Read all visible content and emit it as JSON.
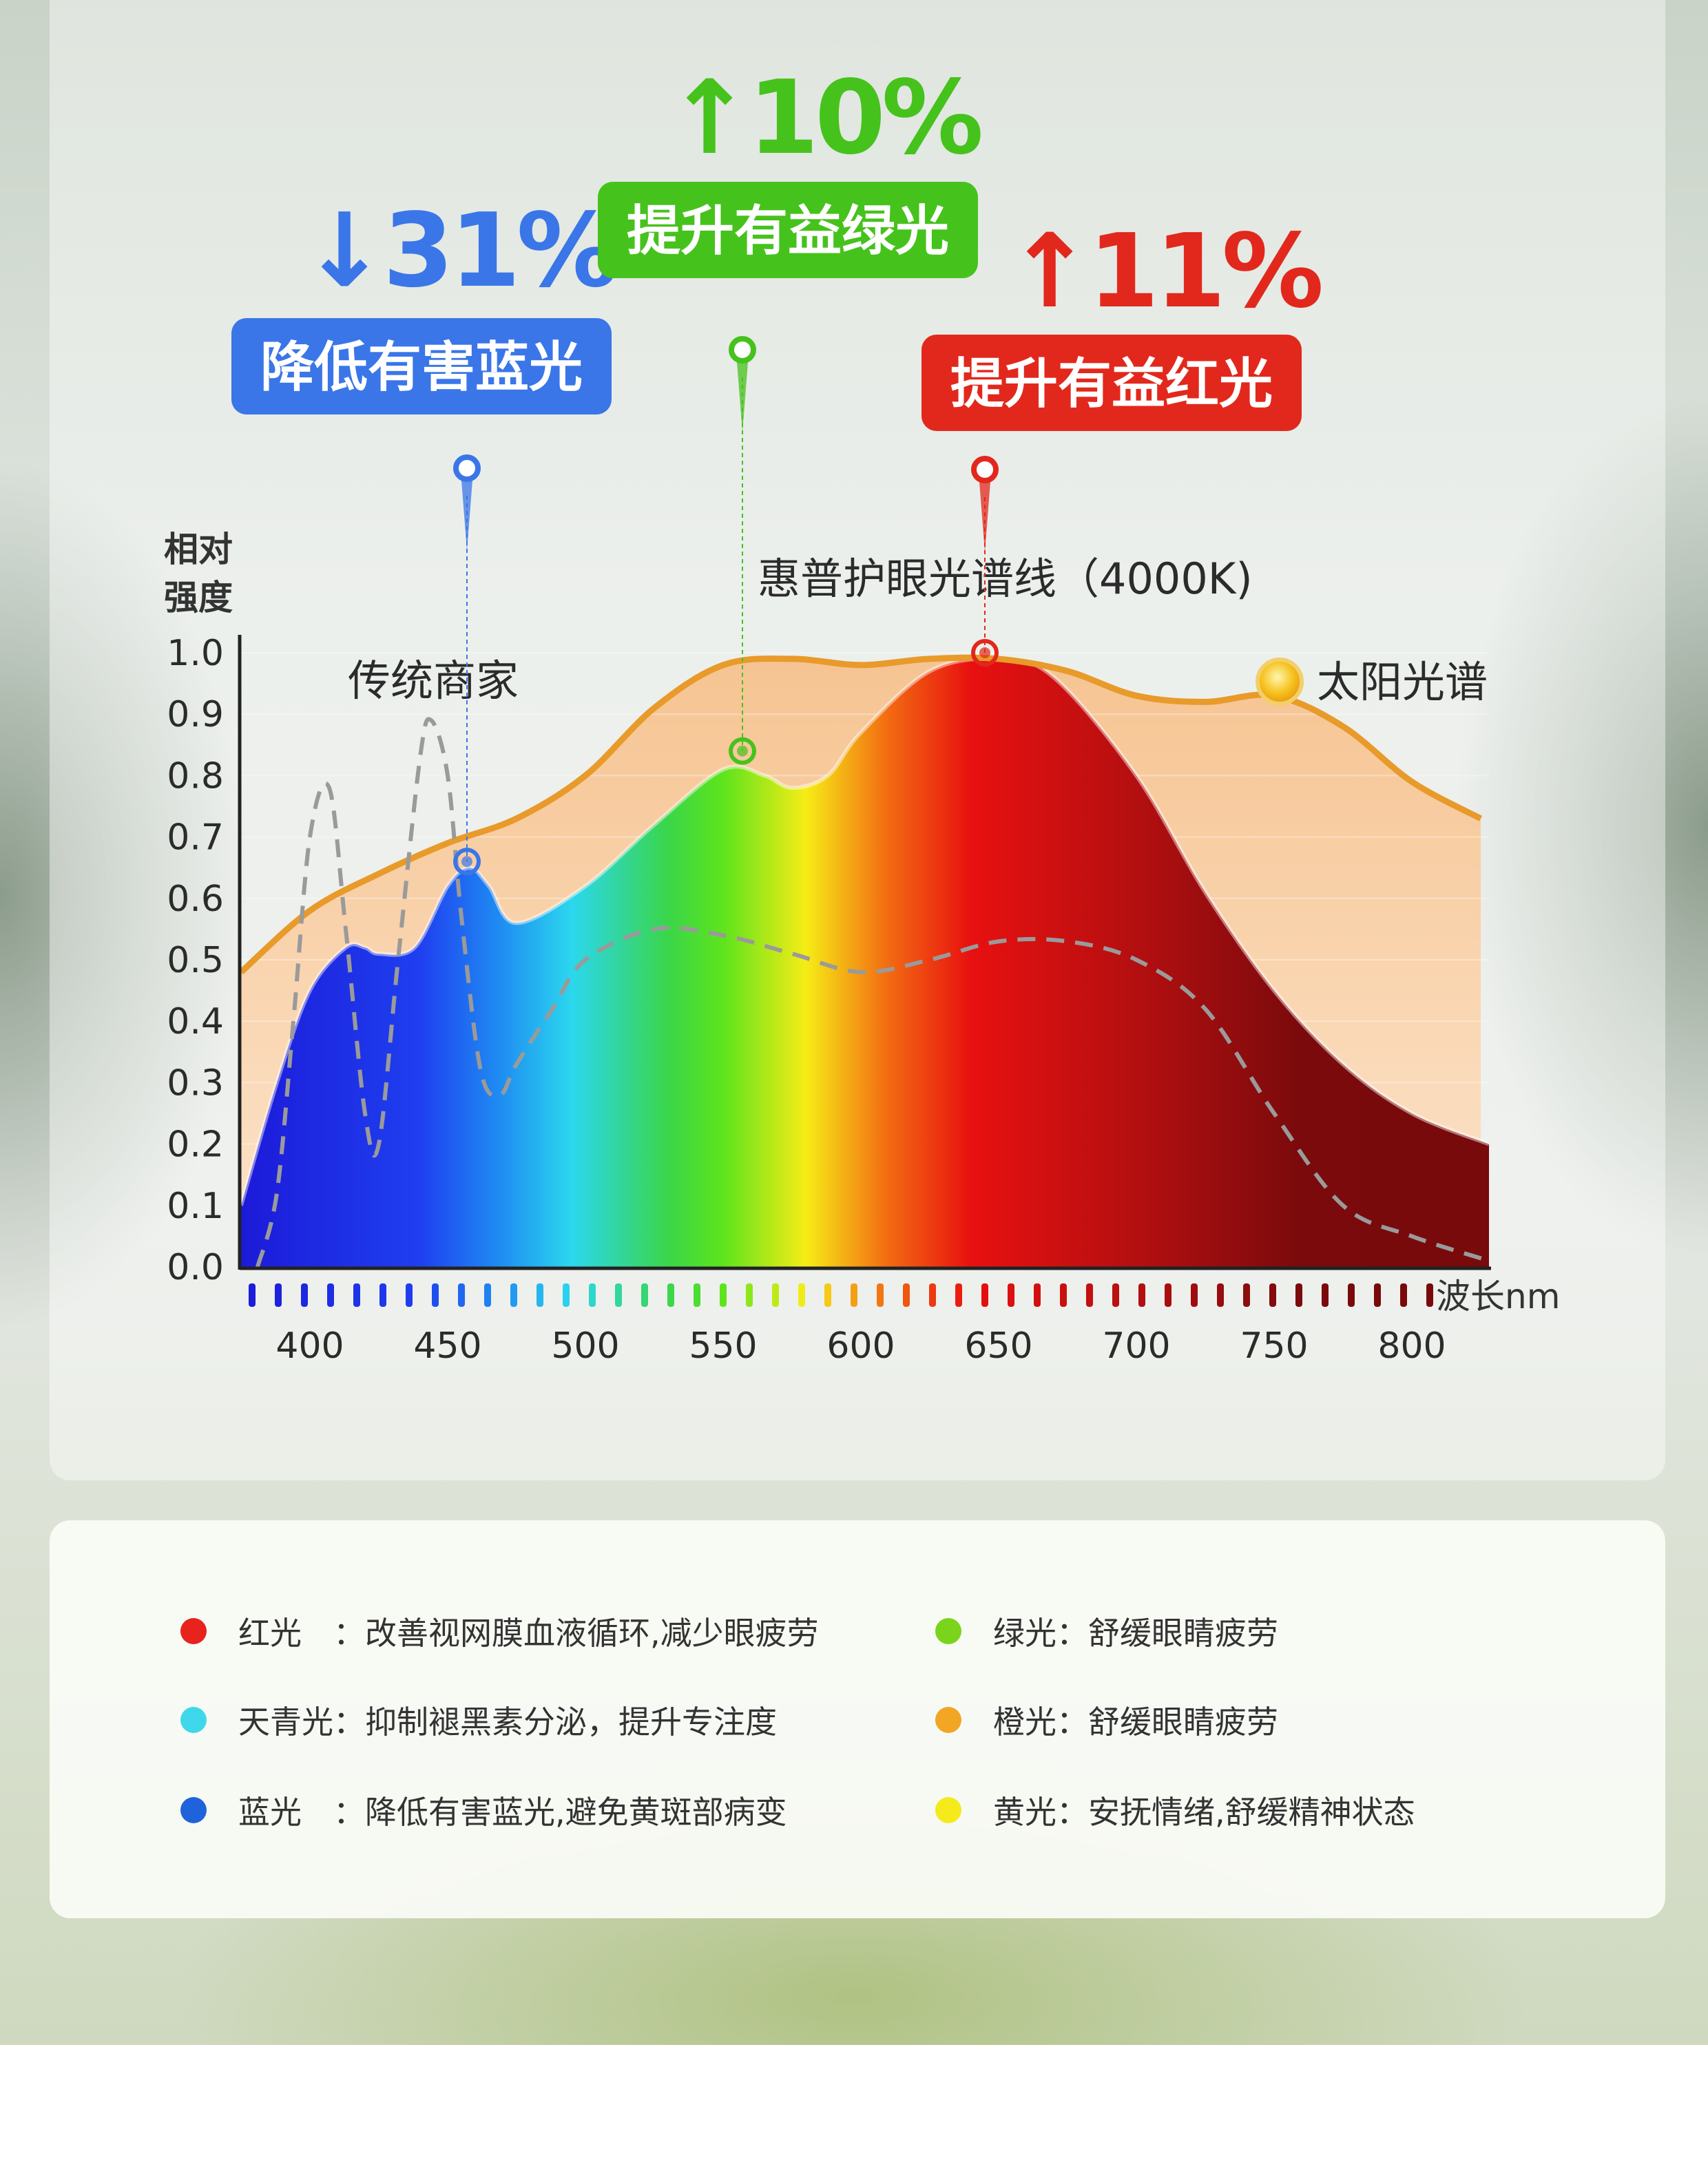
{
  "annotations": [
    {
      "arrow": "↓",
      "percent": "31%",
      "label": "降低有害蓝光",
      "color": "#3a76e8"
    },
    {
      "arrow": "↑",
      "percent": "10%",
      "label": "提升有益绿光",
      "color": "#46c21c"
    },
    {
      "arrow": "↑",
      "percent": "11%",
      "label": "提升有益红光",
      "color": "#e2281c"
    }
  ],
  "legend": [
    {
      "color": "#e8221c",
      "text": "红光　：改善视网膜血液循环,减少眼疲劳"
    },
    {
      "color": "#7bd41c",
      "text": "绿光：舒缓眼睛疲劳"
    },
    {
      "color": "#3fd8ea",
      "text": "天青光：抑制褪黑素分泌，提升专注度"
    },
    {
      "color": "#f2a623",
      "text": "橙光：舒缓眼睛疲劳"
    },
    {
      "color": "#1f63dc",
      "text": "蓝光　：降低有害蓝光,避免黄斑部病变"
    },
    {
      "color": "#f4ea1c",
      "text": "黄光：安抚情绪,舒缓精神状态"
    }
  ],
  "chart_data": {
    "type": "area",
    "ylabel": "相对强度",
    "xlabel": "波长nm",
    "xlim": [
      375,
      828
    ],
    "ylim": [
      0,
      1.0
    ],
    "x_ticks": [
      400,
      450,
      500,
      550,
      600,
      650,
      700,
      750,
      800
    ],
    "y_ticks": [
      "0.0",
      "0.1",
      "0.2",
      "0.3",
      "0.4",
      "0.5",
      "0.6",
      "0.7",
      "0.8",
      "0.9",
      "1.0"
    ],
    "series": [
      {
        "name": "太阳光谱",
        "color": "#e89a2a",
        "x": [
          375,
          400,
          425,
          450,
          475,
          500,
          525,
          550,
          575,
          600,
          625,
          650,
          675,
          700,
          725,
          750,
          775,
          800,
          825
        ],
        "y": [
          0.48,
          0.58,
          0.64,
          0.69,
          0.73,
          0.8,
          0.91,
          0.98,
          0.99,
          0.98,
          0.99,
          0.99,
          0.97,
          0.93,
          0.92,
          0.93,
          0.88,
          0.79,
          0.73
        ]
      },
      {
        "name": "惠普护眼光谱线（4000K)",
        "color": "#ffffff",
        "x": [
          375,
          388,
          400,
          413,
          420,
          425,
          438,
          450,
          458,
          465,
          475,
          500,
          525,
          550,
          565,
          575,
          588,
          600,
          625,
          650,
          670,
          700,
          725,
          750,
          775,
          800,
          828
        ],
        "y": [
          0.1,
          0.3,
          0.45,
          0.52,
          0.52,
          0.51,
          0.52,
          0.62,
          0.65,
          0.62,
          0.56,
          0.62,
          0.72,
          0.81,
          0.8,
          0.78,
          0.8,
          0.87,
          0.97,
          0.99,
          0.96,
          0.8,
          0.61,
          0.45,
          0.33,
          0.25,
          0.2
        ]
      },
      {
        "name": "传统商家",
        "color": "#9a9a9a",
        "x": [
          381,
          388,
          394,
          400,
          407,
          413,
          420,
          425,
          432,
          440,
          444,
          450,
          455,
          462,
          469,
          475,
          488,
          500,
          525,
          550,
          575,
          600,
          625,
          650,
          675,
          700,
          725,
          750,
          775,
          800,
          828
        ],
        "y": [
          0.0,
          0.12,
          0.4,
          0.7,
          0.78,
          0.55,
          0.25,
          0.2,
          0.5,
          0.83,
          0.89,
          0.8,
          0.57,
          0.32,
          0.28,
          0.33,
          0.42,
          0.5,
          0.55,
          0.54,
          0.51,
          0.48,
          0.5,
          0.53,
          0.53,
          0.5,
          0.42,
          0.25,
          0.1,
          0.05,
          0.01
        ]
      }
    ],
    "markers": [
      {
        "x": 457,
        "y": 0.66,
        "color": "#3a76e8"
      },
      {
        "x": 557,
        "y": 0.84,
        "color": "#46c21c"
      },
      {
        "x": 645,
        "y": 1.0,
        "color": "#e2281c"
      }
    ],
    "spectrum_stops": [
      {
        "nm": 375,
        "color": "#1c1ad8"
      },
      {
        "nm": 440,
        "color": "#1f3ff0"
      },
      {
        "nm": 470,
        "color": "#1f8ff2"
      },
      {
        "nm": 495,
        "color": "#2bd7ee"
      },
      {
        "nm": 530,
        "color": "#3ad64a"
      },
      {
        "nm": 550,
        "color": "#5ee41c"
      },
      {
        "nm": 580,
        "color": "#f6ec16"
      },
      {
        "nm": 610,
        "color": "#f26a12"
      },
      {
        "nm": 640,
        "color": "#e81010"
      },
      {
        "nm": 700,
        "color": "#b40f10"
      },
      {
        "nm": 760,
        "color": "#7a0a0c"
      },
      {
        "nm": 828,
        "color": "#780a0c"
      }
    ]
  }
}
